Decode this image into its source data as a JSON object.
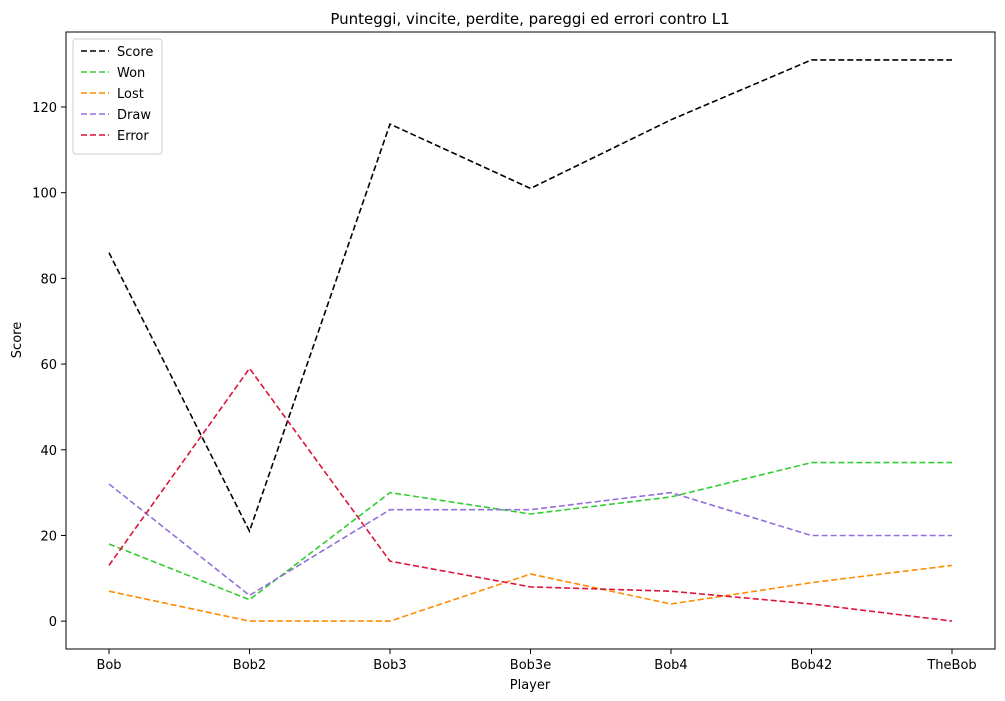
{
  "chart_data": {
    "type": "line",
    "title": "Punteggi, vincite, perdite, pareggi ed errori contro L1",
    "xlabel": "Player",
    "ylabel": "Score",
    "categories": [
      "Bob",
      "Bob2",
      "Bob3",
      "Bob3e",
      "Bob4",
      "Bob42",
      "TheBob"
    ],
    "ylim": [
      -6.5,
      137.5
    ],
    "yticks": [
      0,
      20,
      40,
      60,
      80,
      100,
      120
    ],
    "grid": false,
    "legend_position": "top-left",
    "line_style": "dashed",
    "series": [
      {
        "name": "Score",
        "color": "#000000",
        "values": [
          86,
          21,
          116,
          101,
          117,
          131,
          131
        ]
      },
      {
        "name": "Won",
        "color": "#32cd32",
        "values": [
          18,
          5,
          30,
          25,
          29,
          37,
          37
        ]
      },
      {
        "name": "Lost",
        "color": "#ff8c00",
        "values": [
          7,
          0,
          0,
          11,
          4,
          9,
          13
        ]
      },
      {
        "name": "Draw",
        "color": "#9370db",
        "values": [
          32,
          6,
          26,
          26,
          30,
          20,
          20
        ]
      },
      {
        "name": "Error",
        "color": "#dc143c",
        "values": [
          13,
          59,
          14,
          8,
          7,
          4,
          0
        ]
      }
    ]
  }
}
